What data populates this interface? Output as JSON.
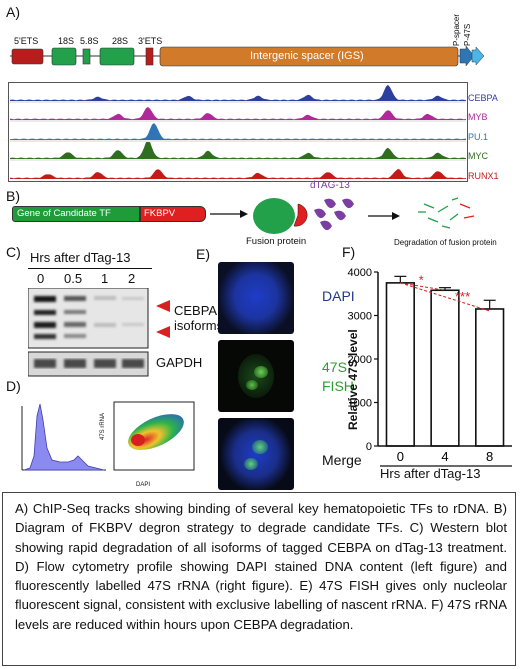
{
  "panels": {
    "a": "A)",
    "b": "B)",
    "c": "C)",
    "d": "D)",
    "e": "E)",
    "f": "F)"
  },
  "gene_map": {
    "labels": [
      "5'ETS",
      "18S",
      "5.8S",
      "28S",
      "3'ETS",
      "Intergenic spacer (IGS)",
      "P-spacer",
      "P-47S"
    ]
  },
  "tracks": [
    {
      "name": "CEBPA",
      "color": "#2c3e9e"
    },
    {
      "name": "MYB",
      "color": "#b0289a"
    },
    {
      "name": "PU.1",
      "color": "#2f74b5"
    },
    {
      "name": "MYC",
      "color": "#2e6e1e"
    },
    {
      "name": "RUNX1",
      "color": "#c51a1a"
    }
  ],
  "diagram_b": {
    "gene_label": "Gene of Candidate TF",
    "degron_label": "FKBPV degron",
    "dtag_label": "dTAG-13",
    "fusion_label": "Fusion protein",
    "degradation_label": "Degradation of fusion protein"
  },
  "western": {
    "header": "Hrs after dTag-13",
    "timepoints": [
      "0",
      "0.5",
      "1",
      "2"
    ],
    "cebpa_label": "CEBPA\nisoforms",
    "gapdh_label": "GAPDH"
  },
  "flow": {
    "y_label": "47S rRNA",
    "x_label": "DAPI"
  },
  "fish": {
    "labels": [
      "DAPI",
      "47S\nFISH",
      "Merge"
    ],
    "colors": [
      "#1f3a8a",
      "#2e9e2e",
      "#111111"
    ]
  },
  "chart_data": {
    "type": "bar",
    "categories": [
      "0",
      "4",
      "8"
    ],
    "values": [
      3750,
      3580,
      3150
    ],
    "errors": [
      150,
      60,
      200
    ],
    "ylabel": "Relative 47S level",
    "xlabel": "Hrs after dTag-13",
    "ylim": [
      0,
      4000
    ],
    "yticks": [
      0,
      1000,
      2000,
      3000,
      4000
    ],
    "significance": [
      {
        "from": "0",
        "to": "4",
        "label": "*"
      },
      {
        "from": "0",
        "to": "8",
        "label": "***"
      }
    ]
  },
  "caption": "A) ChIP-Seq tracks showing binding of several key hematopoietic TFs to rDNA. B) Diagram of FKBPV degron strategy to degrade candidate TFs. C) Western blot showing rapid degradation of all isoforms of tagged CEBPA on dTag-13 treatment. D) Flow cytometry profile showing DAPI stained DNA content (left figure) and fluorescently labelled 47S rRNA (right figure). E) 47S FISH gives only nucleolar fluorescent signal, consistent with exclusive labelling of nascent rRNA. F) 47S rRNA levels are reduced within hours upon CEBPA degradation."
}
